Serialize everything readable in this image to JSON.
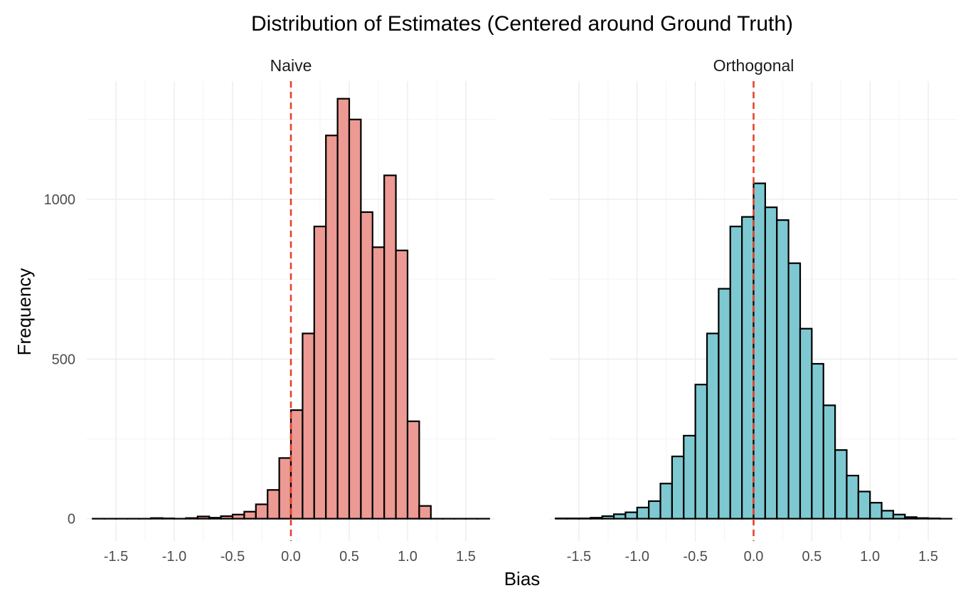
{
  "chart_data": {
    "type": "bar",
    "title": "Distribution of Estimates (Centered around Ground Truth)",
    "xlabel": "Bias",
    "ylabel": "Frequency",
    "xlim": [
      -1.75,
      1.75
    ],
    "ylim": [
      -70,
      1370
    ],
    "x_ticks": [
      "-1.5",
      "-1.0",
      "-0.5",
      "0.0",
      "0.5",
      "1.0",
      "1.5"
    ],
    "x_tick_values": [
      -1.5,
      -1.0,
      -0.5,
      0.0,
      0.5,
      1.0,
      1.5
    ],
    "y_ticks": [
      "0",
      "500",
      "1000"
    ],
    "y_tick_values": [
      0,
      500,
      1000
    ],
    "grid": true,
    "reference_line": {
      "x": 0.0,
      "color": "#e8412c",
      "style": "dashed"
    },
    "bin_width": 0.1,
    "panels": [
      {
        "name": "Naive",
        "fill": "#ec9a93",
        "bin_centers": [
          -1.65,
          -1.55,
          -1.45,
          -1.35,
          -1.25,
          -1.15,
          -1.05,
          -0.95,
          -0.85,
          -0.75,
          -0.65,
          -0.55,
          -0.45,
          -0.35,
          -0.25,
          -0.15,
          -0.05,
          0.05,
          0.15,
          0.25,
          0.35,
          0.45,
          0.55,
          0.65,
          0.75,
          0.85,
          0.95,
          1.05,
          1.15,
          1.25,
          1.35,
          1.45,
          1.55,
          1.65
        ],
        "values": [
          0,
          0,
          0,
          0,
          0,
          2,
          1,
          0,
          2,
          7,
          3,
          8,
          13,
          22,
          45,
          90,
          190,
          340,
          580,
          915,
          1200,
          1315,
          1250,
          960,
          850,
          1075,
          840,
          305,
          40,
          0,
          0,
          0,
          0,
          0
        ]
      },
      {
        "name": "Orthogonal",
        "fill": "#7ec9d1",
        "bin_centers": [
          -1.65,
          -1.55,
          -1.45,
          -1.35,
          -1.25,
          -1.15,
          -1.05,
          -0.95,
          -0.85,
          -0.75,
          -0.65,
          -0.55,
          -0.45,
          -0.35,
          -0.25,
          -0.15,
          -0.05,
          0.05,
          0.15,
          0.25,
          0.35,
          0.45,
          0.55,
          0.65,
          0.75,
          0.85,
          0.95,
          1.05,
          1.15,
          1.25,
          1.35,
          1.45,
          1.55,
          1.65
        ],
        "values": [
          1,
          1,
          1,
          3,
          8,
          14,
          20,
          35,
          55,
          110,
          195,
          260,
          420,
          580,
          720,
          915,
          945,
          1050,
          975,
          935,
          800,
          595,
          485,
          355,
          215,
          135,
          85,
          50,
          25,
          13,
          5,
          2,
          1,
          0
        ]
      }
    ]
  }
}
